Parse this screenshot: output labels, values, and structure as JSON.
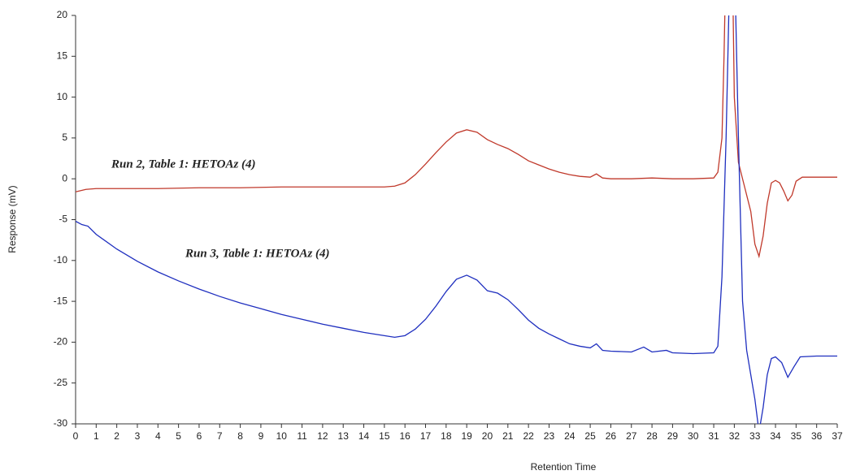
{
  "chart_data": {
    "type": "line",
    "x_label": "Retention Time",
    "y_label": "Response (mV)",
    "xlim": [
      0,
      37
    ],
    "ylim": [
      -30,
      20
    ],
    "xticks": [
      0,
      1,
      2,
      3,
      4,
      5,
      6,
      7,
      8,
      9,
      10,
      11,
      12,
      13,
      14,
      15,
      16,
      17,
      18,
      19,
      20,
      21,
      22,
      23,
      24,
      25,
      26,
      27,
      28,
      29,
      30,
      31,
      32,
      33,
      34,
      35,
      36,
      37
    ],
    "yticks": [
      -30,
      -25,
      -20,
      -15,
      -10,
      -5,
      0,
      5,
      10,
      15,
      20
    ],
    "grid": false,
    "series": [
      {
        "name": "Run 2, Table 1: HETOAz (4)",
        "color": "#c0392b",
        "x": [
          0,
          0.5,
          1,
          2,
          4,
          6,
          8,
          10,
          12,
          14,
          15,
          15.5,
          16,
          16.5,
          17,
          17.5,
          18,
          18.5,
          19,
          19.5,
          20,
          20.5,
          21,
          21.5,
          22,
          22.5,
          23,
          23.5,
          24,
          24.5,
          25,
          25.3,
          25.6,
          26,
          27,
          28,
          29,
          30,
          31,
          31.2,
          31.4,
          31.5,
          31.6,
          31.9,
          32.0,
          32.2,
          32.5,
          32.8,
          33.0,
          33.2,
          33.4,
          33.6,
          33.8,
          34.0,
          34.2,
          34.4,
          34.6,
          34.8,
          35.0,
          35.3,
          36,
          37
        ],
        "values": [
          -1.6,
          -1.3,
          -1.2,
          -1.2,
          -1.2,
          -1.1,
          -1.1,
          -1.0,
          -1.0,
          -1.0,
          -1.0,
          -0.9,
          -0.5,
          0.5,
          1.8,
          3.2,
          4.5,
          5.6,
          6.0,
          5.7,
          4.8,
          4.2,
          3.7,
          3.0,
          2.2,
          1.7,
          1.2,
          0.8,
          0.5,
          0.3,
          0.2,
          0.6,
          0.1,
          0.0,
          0.0,
          0.1,
          0.0,
          0.0,
          0.1,
          0.8,
          5,
          15,
          28,
          28,
          10,
          2,
          -1,
          -4,
          -8,
          -9.5,
          -7,
          -3,
          -0.5,
          -0.2,
          -0.5,
          -1.5,
          -2.7,
          -2,
          -0.3,
          0.2,
          0.2,
          0.2
        ]
      },
      {
        "name": "Run 3, Table 1: HETOAz (4)",
        "color": "#1f2fbf",
        "x": [
          0,
          0.3,
          0.6,
          1,
          2,
          3,
          4,
          5,
          6,
          7,
          8,
          9,
          10,
          11,
          12,
          13,
          14,
          15,
          15.5,
          16,
          16.5,
          17,
          17.5,
          18,
          18.5,
          19,
          19.5,
          20,
          20.5,
          21,
          21.5,
          22,
          22.5,
          23,
          23.5,
          24,
          24.5,
          25,
          25.3,
          25.6,
          26,
          27,
          27.6,
          28,
          28.7,
          29,
          30,
          31,
          31.2,
          31.4,
          31.6,
          31.8,
          32.0,
          32.2,
          32.4,
          32.6,
          32.8,
          33.0,
          33.2,
          33.4,
          33.6,
          33.8,
          34.0,
          34.3,
          34.6,
          34.9,
          35.2,
          36,
          37
        ],
        "values": [
          -5.2,
          -5.6,
          -5.8,
          -6.8,
          -8.6,
          -10.1,
          -11.4,
          -12.5,
          -13.5,
          -14.4,
          -15.2,
          -15.9,
          -16.6,
          -17.2,
          -17.8,
          -18.3,
          -18.8,
          -19.2,
          -19.4,
          -19.2,
          -18.4,
          -17.2,
          -15.6,
          -13.8,
          -12.3,
          -11.8,
          -12.4,
          -13.7,
          -14.0,
          -14.8,
          -16.0,
          -17.3,
          -18.3,
          -19.0,
          -19.6,
          -20.2,
          -20.5,
          -20.7,
          -20.2,
          -21.0,
          -21.1,
          -21.2,
          -20.6,
          -21.2,
          -21.0,
          -21.3,
          -21.4,
          -21.3,
          -20.5,
          -12,
          5,
          28,
          28,
          5,
          -15,
          -21,
          -24,
          -27,
          -31,
          -28,
          -24,
          -22,
          -21.8,
          -22.5,
          -24.3,
          -23,
          -21.8,
          -21.7,
          -21.7
        ]
      }
    ]
  }
}
